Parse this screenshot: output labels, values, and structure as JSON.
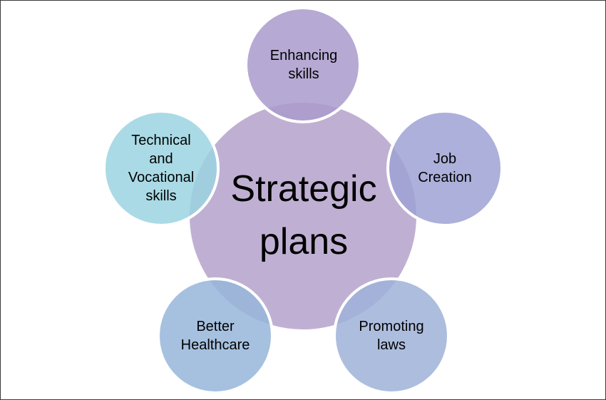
{
  "diagram": {
    "center": {
      "text": "Strategic\nplans",
      "color": "#bfb0d3"
    },
    "satellites": [
      {
        "text": "Enhancing\nskills",
        "color": "#a99bcc"
      },
      {
        "text": "Job\nCreation",
        "color": "#9ea2d3"
      },
      {
        "text": "Promoting\nlaws",
        "color": "#9fb1d8"
      },
      {
        "text": "Better\nHealthcare",
        "color": "#96b6d9"
      },
      {
        "text": "Technical\nand\nVocational\nskills",
        "color": "#9bd3e0"
      }
    ],
    "outline_color": "#ffffff"
  }
}
